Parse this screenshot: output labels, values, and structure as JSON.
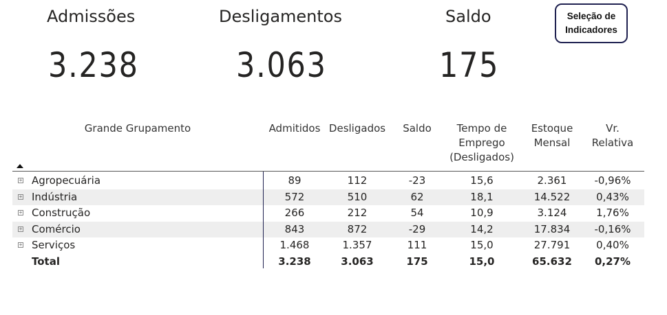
{
  "kpis": [
    {
      "title": "Admissões",
      "value": "3.238"
    },
    {
      "title": "Desligamentos",
      "value": "3.063"
    },
    {
      "title": "Saldo",
      "value": "175"
    }
  ],
  "selector_button": {
    "line1": "Seleção de",
    "line2": "Indicadores"
  },
  "table": {
    "headers": {
      "group": "Grande Grupamento",
      "admitidos": "Admitidos",
      "desligados": "Desligados",
      "saldo": "Saldo",
      "tempo_l1": "Tempo de",
      "tempo_l2": "Emprego",
      "tempo_l3": "(Desligados)",
      "estoque_l1": "Estoque",
      "estoque_l2": "Mensal",
      "vr_l1": "Vr.",
      "vr_l2": "Relativa"
    },
    "rows": [
      {
        "name": "Agropecuária",
        "admitidos": "89",
        "desligados": "112",
        "saldo": "-23",
        "tempo": "15,6",
        "estoque": "2.361",
        "vr": "-0,96%"
      },
      {
        "name": "Indústria",
        "admitidos": "572",
        "desligados": "510",
        "saldo": "62",
        "tempo": "18,1",
        "estoque": "14.522",
        "vr": "0,43%"
      },
      {
        "name": "Construção",
        "admitidos": "266",
        "desligados": "212",
        "saldo": "54",
        "tempo": "10,9",
        "estoque": "3.124",
        "vr": "1,76%"
      },
      {
        "name": "Comércio",
        "admitidos": "843",
        "desligados": "872",
        "saldo": "-29",
        "tempo": "14,2",
        "estoque": "17.834",
        "vr": "-0,16%"
      },
      {
        "name": "Serviços",
        "admitidos": "1.468",
        "desligados": "1.357",
        "saldo": "111",
        "tempo": "15,0",
        "estoque": "27.791",
        "vr": "0,40%"
      }
    ],
    "total": {
      "name": "Total",
      "admitidos": "3.238",
      "desligados": "3.063",
      "saldo": "175",
      "tempo": "15,0",
      "estoque": "65.632",
      "vr": "0,27%"
    }
  }
}
